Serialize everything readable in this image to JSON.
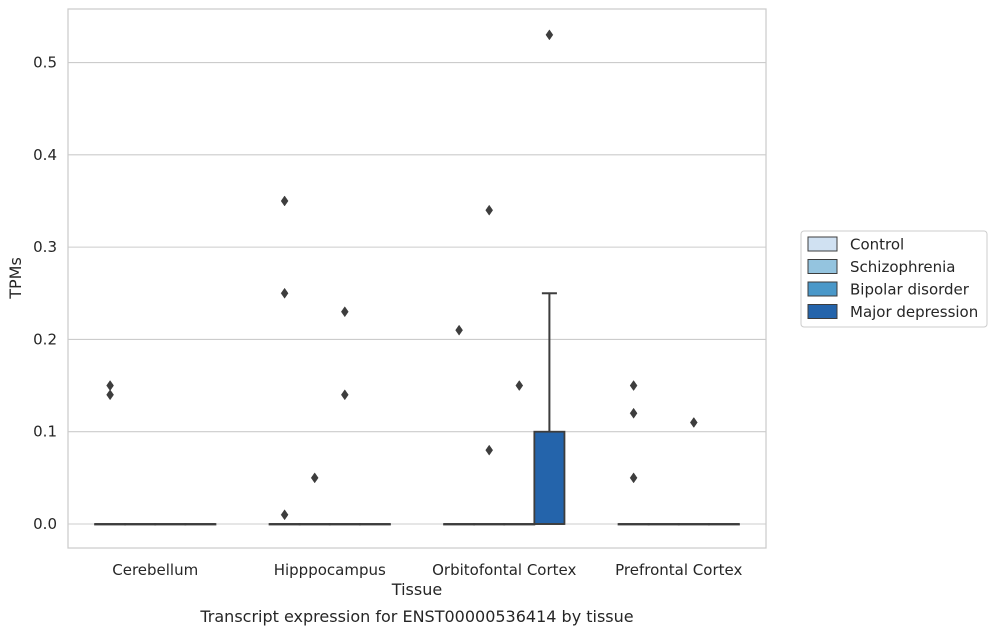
{
  "chart_data": {
    "type": "box",
    "caption": "Transcript expression for ENST00000536414 by tissue",
    "xlabel": "Tissue",
    "ylabel": "TPMs",
    "ylim": [
      -0.026,
      0.558
    ],
    "yticks": [
      "0.0",
      "0.1",
      "0.2",
      "0.3",
      "0.4",
      "0.5"
    ],
    "ytick_values": [
      0.0,
      0.1,
      0.2,
      0.3,
      0.4,
      0.5
    ],
    "grid": true,
    "legend_position": "right",
    "categories": [
      "Cerebellum",
      "Hipppocampus",
      "Orbitofontal Cortex",
      "Prefrontal Cortex"
    ],
    "series": [
      {
        "name": "Control",
        "color": "#d0e1f2",
        "boxes": [
          {
            "q1": 0,
            "median": 0,
            "q3": 0,
            "whisker_low": 0,
            "whisker_high": 0,
            "outliers": [
              0.15,
              0.14
            ]
          },
          {
            "q1": 0,
            "median": 0,
            "q3": 0,
            "whisker_low": 0,
            "whisker_high": 0,
            "outliers": [
              0.35,
              0.25,
              0.01
            ]
          },
          {
            "q1": 0,
            "median": 0,
            "q3": 0,
            "whisker_low": 0,
            "whisker_high": 0,
            "outliers": [
              0.21
            ]
          },
          {
            "q1": 0,
            "median": 0,
            "q3": 0,
            "whisker_low": 0,
            "whisker_high": 0,
            "outliers": [
              0.15,
              0.12,
              0.05
            ]
          }
        ]
      },
      {
        "name": "Schizophrenia",
        "color": "#94c4df",
        "boxes": [
          {
            "q1": 0,
            "median": 0,
            "q3": 0,
            "whisker_low": 0,
            "whisker_high": 0,
            "outliers": []
          },
          {
            "q1": 0,
            "median": 0,
            "q3": 0,
            "whisker_low": 0,
            "whisker_high": 0,
            "outliers": [
              0.05
            ]
          },
          {
            "q1": 0,
            "median": 0,
            "q3": 0,
            "whisker_low": 0,
            "whisker_high": 0,
            "outliers": [
              0.34,
              0.08
            ]
          },
          {
            "q1": 0,
            "median": 0,
            "q3": 0,
            "whisker_low": 0,
            "whisker_high": 0,
            "outliers": []
          }
        ]
      },
      {
        "name": "Bipolar disorder",
        "color": "#4a98c9",
        "boxes": [
          {
            "q1": 0,
            "median": 0,
            "q3": 0,
            "whisker_low": 0,
            "whisker_high": 0,
            "outliers": []
          },
          {
            "q1": 0,
            "median": 0,
            "q3": 0,
            "whisker_low": 0,
            "whisker_high": 0,
            "outliers": [
              0.23,
              0.14
            ]
          },
          {
            "q1": 0,
            "median": 0,
            "q3": 0,
            "whisker_low": 0,
            "whisker_high": 0,
            "outliers": [
              0.15
            ]
          },
          {
            "q1": 0,
            "median": 0,
            "q3": 0,
            "whisker_low": 0,
            "whisker_high": 0,
            "outliers": [
              0.11
            ]
          }
        ]
      },
      {
        "name": "Major depression",
        "color": "#2464ab",
        "boxes": [
          {
            "q1": 0,
            "median": 0,
            "q3": 0,
            "whisker_low": 0,
            "whisker_high": 0,
            "outliers": []
          },
          {
            "q1": 0,
            "median": 0,
            "q3": 0,
            "whisker_low": 0,
            "whisker_high": 0,
            "outliers": []
          },
          {
            "q1": 0,
            "median": 0,
            "q3": 0.1,
            "whisker_low": 0,
            "whisker_high": 0.25,
            "outliers": [
              0.53
            ]
          },
          {
            "q1": 0,
            "median": 0,
            "q3": 0,
            "whisker_low": 0,
            "whisker_high": 0,
            "outliers": []
          }
        ]
      }
    ]
  }
}
